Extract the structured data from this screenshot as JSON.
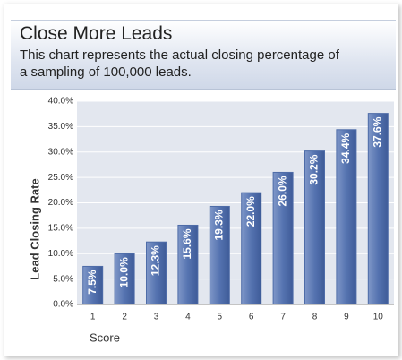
{
  "chart_data": {
    "type": "bar",
    "title": "Close More Leads",
    "subtitle": "This chart represents the actual closing percentage of a sampling of 100,000 leads.",
    "x_label": "Score",
    "y_label": "Lead Closing Rate",
    "categories": [
      "1",
      "2",
      "3",
      "4",
      "5",
      "6",
      "7",
      "8",
      "9",
      "10"
    ],
    "values": [
      7.5,
      10.0,
      12.3,
      15.6,
      19.3,
      22.0,
      26.0,
      30.2,
      34.4,
      37.6
    ],
    "value_labels": [
      "7.5%",
      "10.0%",
      "12.3%",
      "15.6%",
      "19.3%",
      "22.0%",
      "26.0%",
      "30.2%",
      "34.4%",
      "37.6%"
    ],
    "color": "#4e6ca8",
    "ylim": [
      0,
      40
    ],
    "yticks": [
      {
        "value": 0,
        "label": "0.0%"
      },
      {
        "value": 5,
        "label": "5.0%"
      },
      {
        "value": 10,
        "label": "10.0%"
      },
      {
        "value": 15,
        "label": "15.0%"
      },
      {
        "value": 20,
        "label": "20.0%"
      },
      {
        "value": 25,
        "label": "25.0%"
      },
      {
        "value": 30,
        "label": "30.0%"
      },
      {
        "value": 35,
        "label": "35.0%"
      },
      {
        "value": 40,
        "label": "40.0%"
      }
    ],
    "grid": true
  }
}
